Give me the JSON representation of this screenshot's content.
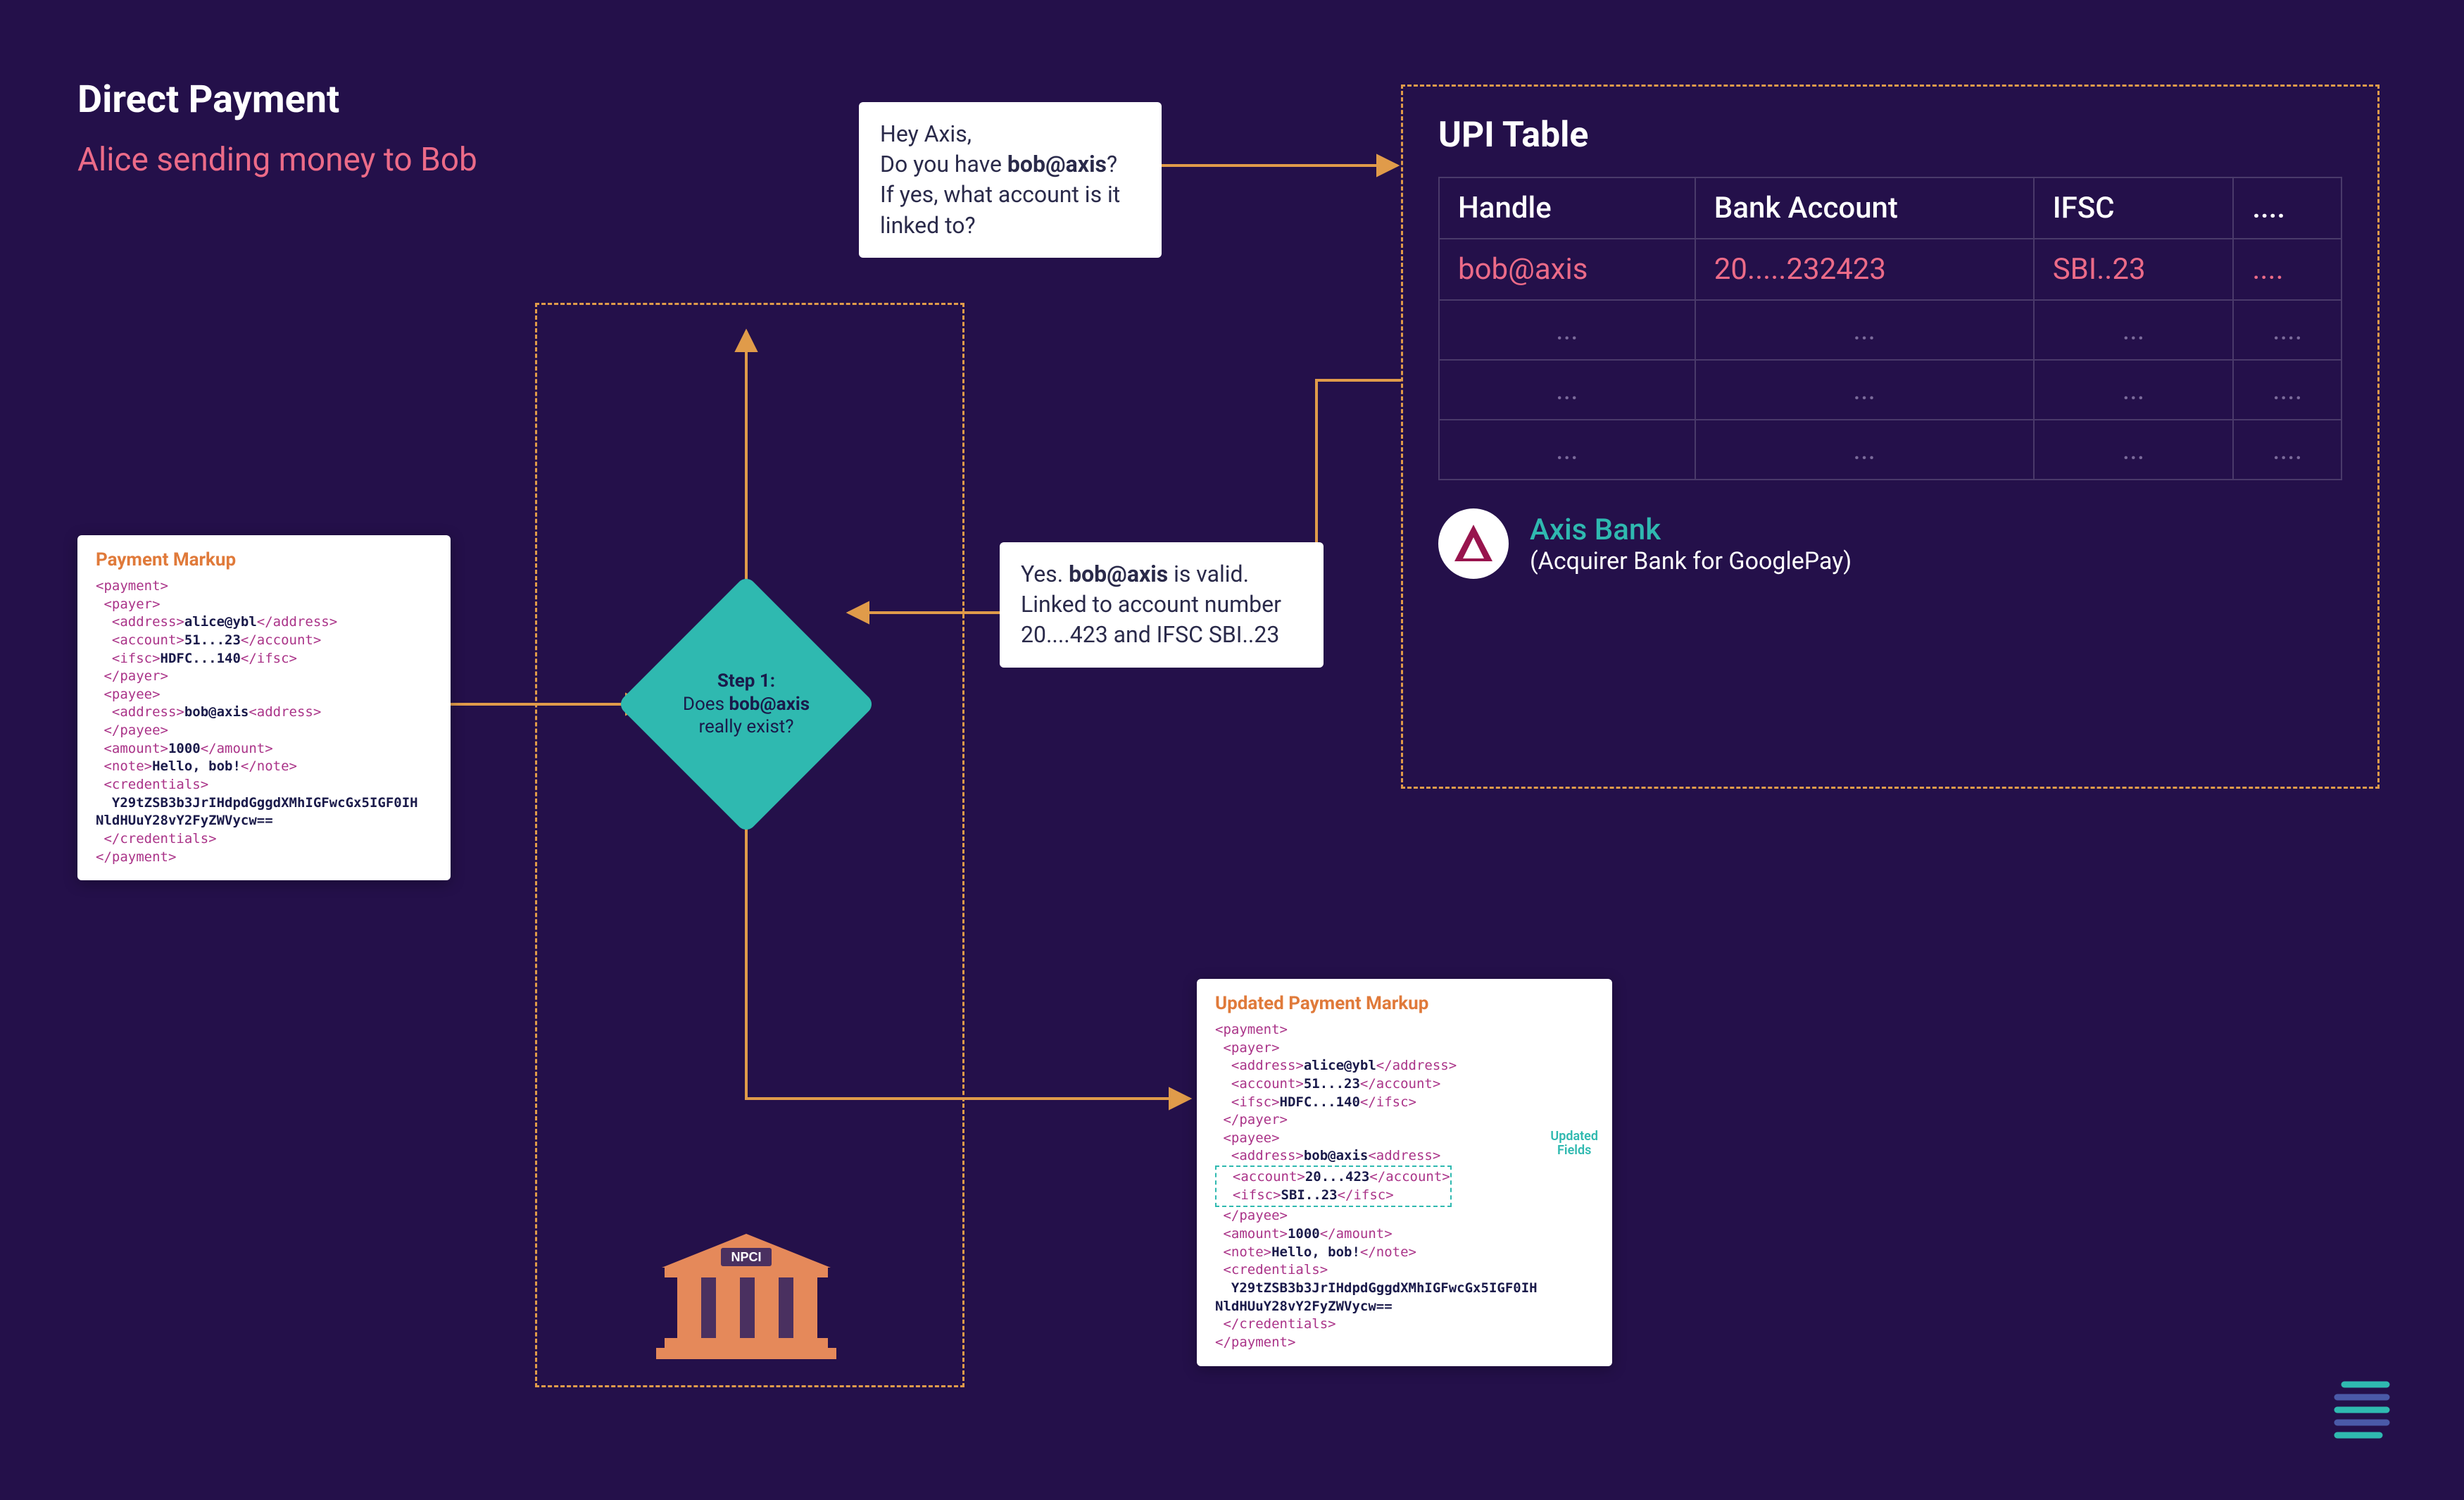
{
  "colors": {
    "bg": "#24104a",
    "accent_orange": "#e09b4a",
    "accent_pink": "#ec6b88",
    "accent_teal": "#2fb9b0",
    "text_white": "#ffffff",
    "text_dark": "#2a2a4a",
    "table_border": "#4a3a6a",
    "table_dim": "#7a6a9a",
    "markup_tag": "#aa3388",
    "npci_orange": "#e5895a",
    "npci_dark": "#4a3060",
    "axis_maroon": "#98144d"
  },
  "title": "Direct Payment",
  "subtitle": "Alice sending money to Bob",
  "diamond": {
    "step": "Step 1:",
    "line1_a": "Does ",
    "line1_b": "bob@axis",
    "line2": "really exist?"
  },
  "speech_q": {
    "l1": "Hey Axis,",
    "l2a": "Do you have ",
    "l2b": "bob@axis",
    "l2c": "?",
    "l3": "If yes, what account is it",
    "l4": "linked to?"
  },
  "speech_a": {
    "l1a": "Yes. ",
    "l1b": "bob@axis",
    "l1c": " is valid.",
    "l2": "Linked to account number",
    "l3": "20....423 and IFSC SBI..23"
  },
  "upi": {
    "title": "UPI Table",
    "columns": [
      "Handle",
      "Bank Account",
      "IFSC",
      "...."
    ],
    "highlight_row": [
      "bob@axis",
      "20.....232423",
      "SBI..23",
      "...."
    ],
    "dim_rows": [
      [
        "...",
        "...",
        "...",
        "...."
      ],
      [
        "...",
        "...",
        "...",
        "...."
      ],
      [
        "...",
        "...",
        "...",
        "...."
      ]
    ]
  },
  "bank": {
    "name": "Axis Bank",
    "sub": "(Acquirer Bank for GooglePay)"
  },
  "markup1": {
    "title": "Payment Markup",
    "payer_addr": "alice@ybl",
    "payer_acct": "51...23",
    "payer_ifsc": "HDFC...140",
    "payee_addr": "bob@axis",
    "amount": "1000",
    "note": "Hello, bob!",
    "cred": "Y29tZSB3b3JrIHdpdGggdXMhIGFwcGx5IGF0IH\nNldHUuY28vY2FyZWVycw=="
  },
  "markup2": {
    "title": "Updated Payment Markup",
    "payee_acct": "20...423",
    "payee_ifsc": "SBI..23",
    "updated_label_1": "Updated",
    "updated_label_2": "Fields"
  },
  "npci_label": "NPCI"
}
